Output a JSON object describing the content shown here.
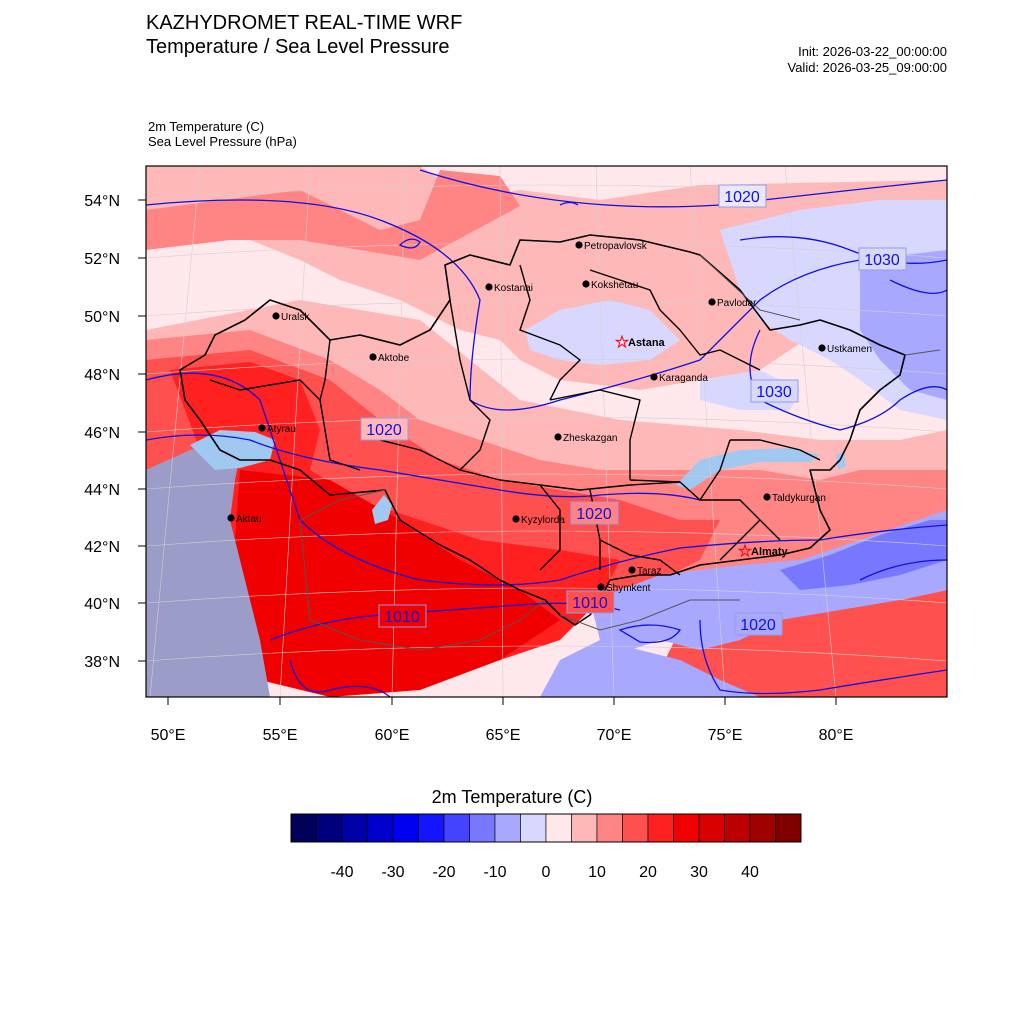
{
  "header": {
    "title": "KAZHYDROMET REAL-TIME WRF",
    "subtitle": "Temperature / Sea Level Pressure",
    "init": "Init: 2026-03-22_00:00:00",
    "valid": "Valid: 2026-03-25_09:00:00"
  },
  "fields": {
    "temperature": "2m Temperature   (C)",
    "pressure": "Sea Level Pressure   (hPa)"
  },
  "axes": {
    "lat_labels": [
      "54°N",
      "52°N",
      "50°N",
      "48°N",
      "46°N",
      "44°N",
      "42°N",
      "40°N",
      "38°N"
    ],
    "lon_labels": [
      "50°E",
      "55°E",
      "60°E",
      "65°E",
      "70°E",
      "75°E",
      "80°E"
    ]
  },
  "isobar_labels": [
    "1020",
    "1030",
    "1030",
    "1020",
    "1020",
    "1010",
    "1010",
    "1020"
  ],
  "cities": [
    {
      "name": "Petropavlovsk",
      "capital": false
    },
    {
      "name": "Kostanai",
      "capital": false
    },
    {
      "name": "Kokshetau",
      "capital": false
    },
    {
      "name": "Pavlodar",
      "capital": false
    },
    {
      "name": "Uralsk",
      "capital": false
    },
    {
      "name": "Astana",
      "capital": true
    },
    {
      "name": "Aktobe",
      "capital": false
    },
    {
      "name": "Ustkamen",
      "capital": false
    },
    {
      "name": "Karaganda",
      "capital": false
    },
    {
      "name": "Atyrau",
      "capital": false
    },
    {
      "name": "Zheskazgan",
      "capital": false
    },
    {
      "name": "Taldykurgan",
      "capital": false
    },
    {
      "name": "Aktau",
      "capital": false
    },
    {
      "name": "Kyzylorda",
      "capital": false
    },
    {
      "name": "Almaty",
      "capital": true
    },
    {
      "name": "Taraz",
      "capital": false
    },
    {
      "name": "Shymkent",
      "capital": false
    }
  ],
  "colorbar": {
    "title": "2m Temperature  (C)",
    "tick_labels": [
      "-40",
      "-30",
      "-20",
      "-10",
      "0",
      "10",
      "20",
      "30",
      "40"
    ],
    "colors": [
      "#00005a",
      "#00007f",
      "#0000a8",
      "#0000cc",
      "#0000f0",
      "#1414ff",
      "#4444ff",
      "#7777ff",
      "#a8a8ff",
      "#d8d8ff",
      "#ffe8ec",
      "#ffb8b8",
      "#ff8484",
      "#ff5050",
      "#ff2020",
      "#f00000",
      "#d80000",
      "#bc0000",
      "#a00000",
      "#800000"
    ]
  }
}
